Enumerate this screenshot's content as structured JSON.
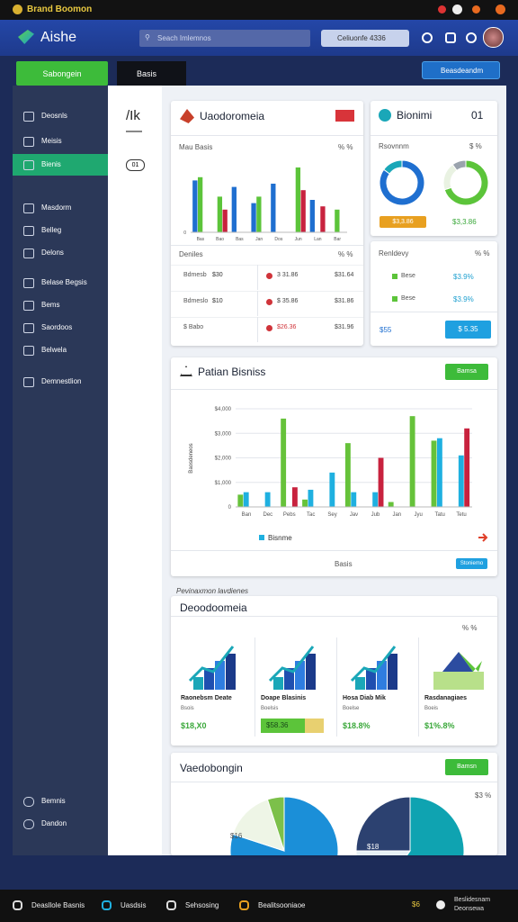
{
  "top_bar": {
    "title": "Brand Boomon"
  },
  "header": {
    "logo": "Aishe",
    "search": "Seach Imlemnos",
    "date_button": "Celiuonfe  4336"
  },
  "toolbar": {
    "primary_button": "Sabongein",
    "tab": "Basis",
    "action_button": "Beasdeandm"
  },
  "sidebar": {
    "items": [
      "Deosnls",
      "Meisis",
      "Bienis",
      "Masdorm",
      "Belleg",
      "Delons",
      "Belase Begsis",
      "Bems",
      "Saordoos",
      "Belwela",
      "Demnestlion"
    ],
    "footer": [
      "Bemnis",
      "Dandon"
    ]
  },
  "sub_panel": {
    "heading": "/Ik",
    "badge": "01"
  },
  "card_overview": {
    "title": "Uaodoromeia",
    "chart_label": "Mau Basis",
    "chart_unit": "% %",
    "table_title": "Deniles",
    "table_unit": "% %",
    "rows": [
      [
        "Bdmesb",
        "$30",
        "3 31.86",
        "$31.64"
      ],
      [
        "Bdmeslo",
        "$10",
        "$ 35.86",
        "$31.86"
      ],
      [
        "$ Babo",
        "",
        "$26.36",
        "$31.96"
      ]
    ]
  },
  "card_bionimi": {
    "title": "Bionimi",
    "badge": "01",
    "subtitle": "Rsovnnm",
    "unit": "$ %",
    "badge_value": "$3,3.86",
    "value": "$3,3.86"
  },
  "card_renldevy": {
    "title": "Renldevy",
    "unit": "% %",
    "rows": [
      [
        "Bese",
        "$3.9%"
      ],
      [
        "Bese",
        "$3.9%"
      ]
    ],
    "footer": "$55",
    "button": "$ 5.35"
  },
  "card_patian": {
    "button": "Bamsa",
    "footer": "Basis",
    "footer_button": "Stoniemo"
  },
  "section_label": "Pevinaxmon lavdienes",
  "card_deoodoomeia": {
    "title": "Deoodoomeia",
    "unit": "% %",
    "tiles": [
      {
        "title": "Raonebsm Deate",
        "sub": "Bsois",
        "value": "$18,X0"
      },
      {
        "title": "Doape Blasinis",
        "sub": "Boelsis",
        "value": "$58.36"
      },
      {
        "title": "Hosa Diab Mik",
        "sub": "Boelse",
        "value": "$18.8%"
      },
      {
        "title": "Rasdanagiaes",
        "sub": "Boeis",
        "value": "$1%.8%"
      }
    ]
  },
  "card_vaedobongin": {
    "title": "Vaedobongin",
    "button": "Bamsn",
    "notes": [
      "$3 %",
      "$16",
      "$18"
    ]
  },
  "bottom_bar": {
    "items": [
      "Deasllole Basnis",
      "Uasdsis",
      "Sehsosing",
      "Bealitsooniaoe"
    ],
    "right_value": "$6",
    "right_text": [
      "Beslidesnam",
      "Deonsewa"
    ]
  },
  "chart_data": [
    {
      "type": "bar",
      "categories": [
        "Bas",
        "Bao",
        "Bas",
        "Jan",
        "Dos",
        "Jun",
        "Lan",
        "Bar"
      ],
      "series": [
        {
          "color": "#1f6fd0",
          "values": [
            80,
            null,
            70,
            45,
            75,
            null,
            50,
            null
          ]
        },
        {
          "color": "#5cc43a",
          "values": [
            85,
            55,
            null,
            55,
            null,
            100,
            null,
            35
          ]
        },
        {
          "color": "#c8223e",
          "values": [
            null,
            35,
            null,
            null,
            null,
            65,
            40,
            null
          ]
        }
      ],
      "ylim": [
        0,
        100
      ],
      "yticks": [
        0
      ],
      "grid": true
    },
    {
      "type": "pie",
      "donut": true,
      "values": [
        85,
        15
      ],
      "colors": [
        "#1f6fd0",
        "#1aa7b8"
      ]
    },
    {
      "type": "pie",
      "donut": true,
      "values": [
        70,
        20,
        10
      ],
      "colors": [
        "#5cc43a",
        "#e9f2e2",
        "#9aa3ad"
      ]
    },
    {
      "type": "bar",
      "title": "Patian Bisniss",
      "ylabel": "Baosdeneos",
      "categories": [
        "Ban",
        "Dec",
        "Pebs",
        "Tac",
        "Sey",
        "Jav",
        "Jub",
        "Jan",
        "Jyu",
        "Tatu",
        "Tetu"
      ],
      "series": [
        {
          "color": "#66c23a",
          "values": [
            500,
            null,
            3600,
            300,
            null,
            2600,
            null,
            200,
            3700,
            2700,
            null
          ]
        },
        {
          "name": "Bisnme",
          "color": "#1fb0e0",
          "values": [
            600,
            600,
            null,
            700,
            1400,
            600,
            600,
            null,
            null,
            2800,
            2100
          ]
        },
        {
          "color": "#c8223e",
          "values": [
            null,
            null,
            800,
            null,
            null,
            null,
            2000,
            null,
            null,
            null,
            3200
          ]
        }
      ],
      "ylim": [
        0,
        4000
      ],
      "yticks": [
        0,
        {
          "value": 1000,
          "label": "$1,000"
        },
        {
          "value": 2000,
          "label": "$2,000"
        },
        {
          "value": 3000,
          "label": "$3,000"
        },
        {
          "value": 4000,
          "label": "$4,000"
        }
      ],
      "grid": true,
      "legend": "bottom-left"
    },
    {
      "type": "pie",
      "values": [
        80,
        15,
        5
      ],
      "colors": [
        "#1b8fd8",
        "#eef5e6",
        "#7cc04a"
      ]
    },
    {
      "type": "pie",
      "values": [
        60,
        15,
        25
      ],
      "colors": [
        "#0fa3b1",
        "#e6f0f5",
        "#2c4170"
      ]
    }
  ]
}
